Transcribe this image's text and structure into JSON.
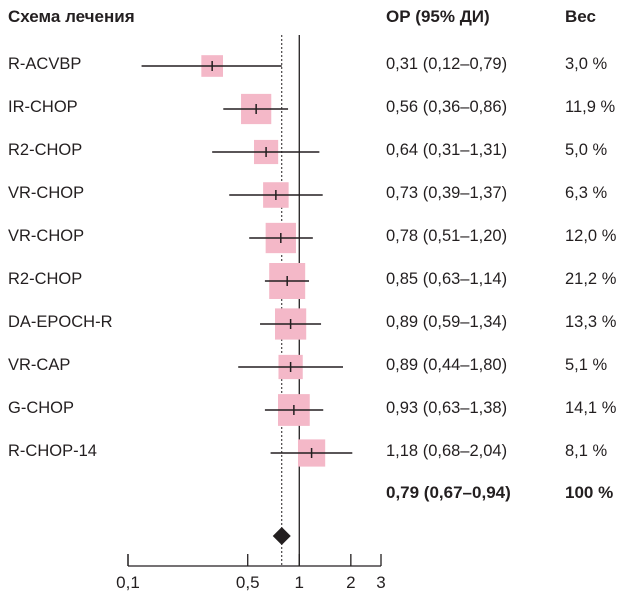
{
  "headers": {
    "regimen": "Схема лечения",
    "hr": "ОР (95% ДИ)",
    "weight": "Вес"
  },
  "rows": [
    {
      "label": "R-ACVBP",
      "hr_text": "0,31 (0,12–0,79)",
      "weight_text": "3,0 %"
    },
    {
      "label": "IR-CHOP",
      "hr_text": "0,56 (0,36–0,86)",
      "weight_text": "11,9 %"
    },
    {
      "label": "R2-CHOP",
      "hr_text": "0,64 (0,31–1,31)",
      "weight_text": "5,0 %"
    },
    {
      "label": "VR-CHOP",
      "hr_text": "0,73 (0,39–1,37)",
      "weight_text": "6,3 %"
    },
    {
      "label": "VR-CHOP",
      "hr_text": "0,78 (0,51–1,20)",
      "weight_text": "12,0 %"
    },
    {
      "label": "R2-CHOP",
      "hr_text": "0,85 (0,63–1,14)",
      "weight_text": "21,2 %"
    },
    {
      "label": "DA-EPOCH-R",
      "hr_text": "0,89 (0,59–1,34)",
      "weight_text": "13,3 %"
    },
    {
      "label": "VR-CAP",
      "hr_text": "0,89 (0,44–1,80)",
      "weight_text": "5,1 %"
    },
    {
      "label": "G-CHOP",
      "hr_text": "0,93 (0,63–1,38)",
      "weight_text": "14,1 %"
    },
    {
      "label": "R-CHOP-14",
      "hr_text": "1,18 (0,68–2,04)",
      "weight_text": "8,1 %"
    }
  ],
  "overall": {
    "hr_text": "0,79 (0,67–0,94)",
    "weight_text": "100 %"
  },
  "colors": {
    "box": "#f4b8c8",
    "line": "#231f20",
    "diamond": "#231f20"
  },
  "chart_data": {
    "type": "forest",
    "x_scale": "log",
    "xlim": [
      0.1,
      3
    ],
    "x_ticks": [
      {
        "value": 0.1,
        "label": "0,1"
      },
      {
        "value": 0.5,
        "label": "0,5"
      },
      {
        "value": 1,
        "label": "1"
      },
      {
        "value": 2,
        "label": "2"
      },
      {
        "value": 3,
        "label": "3"
      }
    ],
    "reference_line": 1,
    "pooled_line": 0.79,
    "studies": [
      {
        "hr": 0.31,
        "lo": 0.12,
        "hi": 0.79,
        "weight": 3.0
      },
      {
        "hr": 0.56,
        "lo": 0.36,
        "hi": 0.86,
        "weight": 11.9
      },
      {
        "hr": 0.64,
        "lo": 0.31,
        "hi": 1.31,
        "weight": 5.0
      },
      {
        "hr": 0.73,
        "lo": 0.39,
        "hi": 1.37,
        "weight": 6.3
      },
      {
        "hr": 0.78,
        "lo": 0.51,
        "hi": 1.2,
        "weight": 12.0
      },
      {
        "hr": 0.85,
        "lo": 0.63,
        "hi": 1.14,
        "weight": 21.2
      },
      {
        "hr": 0.89,
        "lo": 0.59,
        "hi": 1.34,
        "weight": 13.3
      },
      {
        "hr": 0.89,
        "lo": 0.44,
        "hi": 1.8,
        "weight": 5.1
      },
      {
        "hr": 0.93,
        "lo": 0.63,
        "hi": 1.38,
        "weight": 14.1
      },
      {
        "hr": 1.18,
        "lo": 0.68,
        "hi": 2.04,
        "weight": 8.1
      }
    ],
    "pooled": {
      "hr": 0.79,
      "lo": 0.67,
      "hi": 0.94,
      "weight": 100
    }
  }
}
